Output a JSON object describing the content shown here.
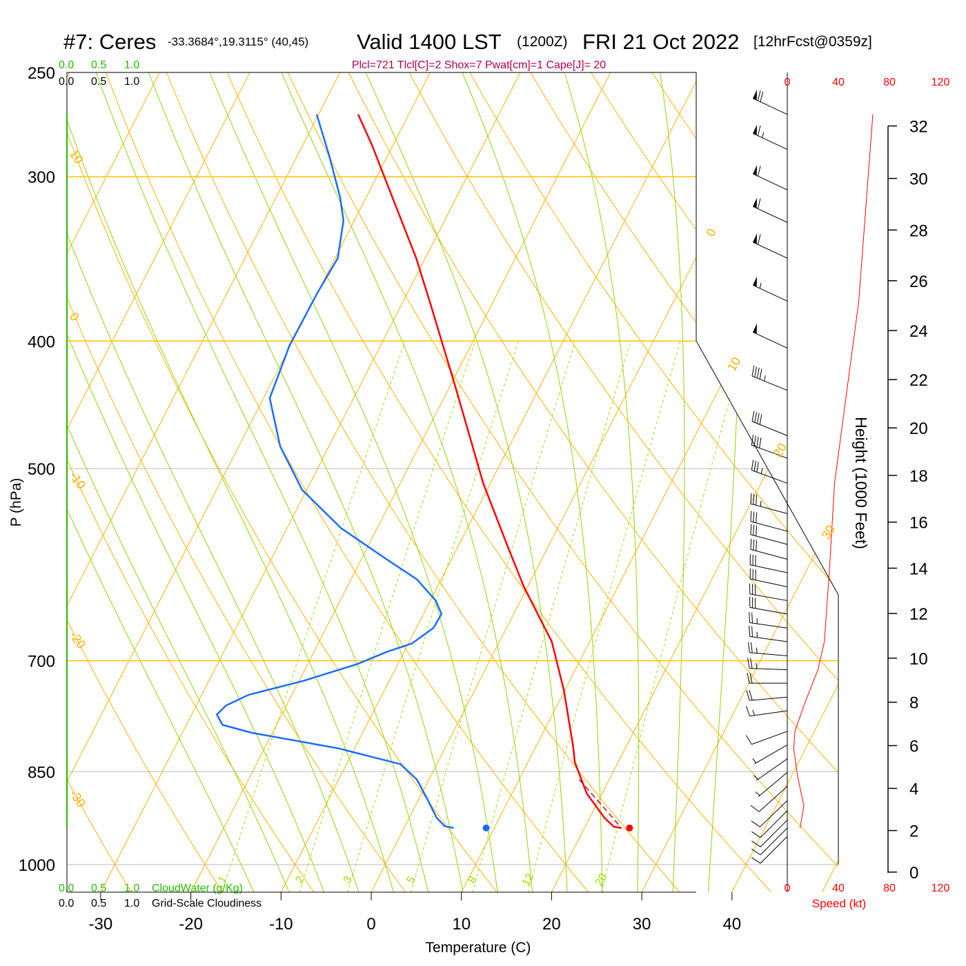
{
  "title": {
    "station": "#7: Ceres",
    "coords": "-33.3684°,19.3115° (40,45)",
    "valid": "Valid 1400 LST",
    "utc": "(1200Z)",
    "date": "FRI 21 Oct 2022",
    "forecast": "[12hrFcst@0359z]"
  },
  "indices": "Plcl=721 Tlcl[C]=2 Shox=7 Pwat[cm]=1 Cape[J]= 20",
  "cloud_scales": {
    "cloudwater_ticks": [
      "0.0",
      "0.5",
      "1.0"
    ],
    "cloudiness_ticks": [
      "0.0",
      "0.5",
      "1.0"
    ],
    "cloudwater_label": "CloudWater (g/Kg)",
    "cloudiness_label": "Grid-Scale Cloudiness"
  },
  "colors": {
    "temperature": "#ff0000",
    "dewpoint": "#1a6cff",
    "isotherm": "#ffb000",
    "moist_adiabat": "#8fd400",
    "mixing_ratio": "#99dd00",
    "parcel": "#b0004a",
    "cloud": "#22bb00"
  },
  "chart_data": {
    "type": "line",
    "title": "Skew-T sounding",
    "xlabel": "Temperature (C)",
    "ylabel": "P (hPa)",
    "right_label": "Height (1000 Feet)",
    "speed_label": "Speed (kt)",
    "pressure_ticks": [
      {
        "p": 250,
        "label": "250"
      },
      {
        "p": 300,
        "label": "300"
      },
      {
        "p": 400,
        "label": "400"
      },
      {
        "p": 500,
        "label": "500"
      },
      {
        "p": 700,
        "label": "700"
      },
      {
        "p": 850,
        "label": "850"
      },
      {
        "p": 1000,
        "label": "1000"
      }
    ],
    "temperature_ticks": [
      {
        "t": -30,
        "label": "-30"
      },
      {
        "t": -20,
        "label": "-20"
      },
      {
        "t": -10,
        "label": "-10"
      },
      {
        "t": 0,
        "label": "0"
      },
      {
        "t": 10,
        "label": "10"
      },
      {
        "t": 20,
        "label": "20"
      },
      {
        "t": 30,
        "label": "30"
      },
      {
        "t": 40,
        "label": "40"
      }
    ],
    "height_ticks_kft": [
      {
        "h": 0,
        "label": "0"
      },
      {
        "h": 2,
        "label": "2"
      },
      {
        "h": 4,
        "label": "4"
      },
      {
        "h": 6,
        "label": "6"
      },
      {
        "h": 8,
        "label": "8"
      },
      {
        "h": 10,
        "label": "10"
      },
      {
        "h": 12,
        "label": "12"
      },
      {
        "h": 14,
        "label": "14"
      },
      {
        "h": 16,
        "label": "16"
      },
      {
        "h": 18,
        "label": "18"
      },
      {
        "h": 20,
        "label": "20"
      },
      {
        "h": 22,
        "label": "22"
      },
      {
        "h": 24,
        "label": "24"
      },
      {
        "h": 26,
        "label": "26"
      },
      {
        "h": 28,
        "label": "28"
      },
      {
        "h": 30,
        "label": "30"
      },
      {
        "h": 32,
        "label": "32"
      }
    ],
    "speed_ticks": [
      {
        "s": 0,
        "label": "0"
      },
      {
        "s": 40,
        "label": "40"
      },
      {
        "s": 80,
        "label": "80"
      },
      {
        "s": 120,
        "label": "120"
      }
    ],
    "isotherm_labels": [
      {
        "t": 0,
        "p": 332,
        "label": "0"
      },
      {
        "t": 10,
        "p": 418,
        "label": "10"
      },
      {
        "t": 20,
        "p": 486,
        "label": "20"
      },
      {
        "t": 30,
        "p": 561,
        "label": "30"
      }
    ],
    "dry_adiabat_labels": [
      {
        "theta": 10,
        "label": "10"
      },
      {
        "theta": 0,
        "label": "0"
      },
      {
        "theta": -10,
        "label": "-10"
      },
      {
        "theta": -20,
        "label": "-20"
      },
      {
        "theta": -30,
        "label": "-30"
      }
    ],
    "mixing_ratio_labels": [
      {
        "w": 1,
        "label": "1"
      },
      {
        "w": 2,
        "label": "2"
      },
      {
        "w": 3,
        "label": "3"
      },
      {
        "w": 5,
        "label": "5"
      },
      {
        "w": 8,
        "label": "8"
      },
      {
        "w": 12,
        "label": "12"
      },
      {
        "w": 20,
        "label": "20"
      }
    ],
    "series": [
      {
        "name": "Temperature",
        "p": [
          269,
          284,
          303,
          346,
          375,
          433,
          513,
          572,
          615,
          677,
          737,
          811,
          836,
          883,
          921,
          936,
          938
        ],
        "t": [
          -45.6,
          -42.3,
          -38.6,
          -31.0,
          -26.8,
          -19.4,
          -10.8,
          -4.6,
          -0.4,
          5.8,
          9.9,
          14.0,
          15.2,
          18.3,
          21.6,
          23.2,
          24.1
        ]
      },
      {
        "name": "Dewpoint",
        "p": [
          269,
          289,
          311,
          324,
          346,
          368,
          403,
          442,
          481,
          519,
          555,
          586,
          607,
          630,
          645,
          661,
          679,
          689,
          704,
          725,
          743,
          757,
          769,
          783,
          794,
          816,
          839,
          862,
          894,
          921,
          935,
          938
        ],
        "t": [
          -50.2,
          -46.5,
          -42.9,
          -41.2,
          -39.7,
          -40.0,
          -40.1,
          -39.3,
          -35.4,
          -30.5,
          -24.0,
          -17.2,
          -12.7,
          -9.4,
          -8.0,
          -8.1,
          -9.6,
          -11.9,
          -14.5,
          -19.5,
          -24.8,
          -26.7,
          -27.2,
          -26.0,
          -22.3,
          -11.8,
          -4.0,
          -1.3,
          1.1,
          3.0,
          4.4,
          5.5
        ]
      },
      {
        "name": "Parcel",
        "p": [
          862,
          899,
          938
        ],
        "t": [
          16.7,
          20.4,
          24.1
        ]
      }
    ],
    "surface_points": [
      {
        "name": "Surface temperature",
        "p": 938,
        "t": 25.0
      },
      {
        "name": "Surface dewpoint",
        "p": 938,
        "t": 9.1
      }
    ],
    "wind_speed_profile": {
      "p": [
        269,
        373,
        513,
        598,
        677,
        711,
        757,
        792,
        816,
        856,
        902,
        938
      ],
      "speed_kt": [
        67,
        56,
        37,
        33,
        29,
        24,
        13,
        6,
        5,
        8,
        13,
        10
      ]
    },
    "wind_barbs": [
      {
        "p": 269,
        "dir": 295,
        "spd": 70
      },
      {
        "p": 286,
        "dir": 295,
        "spd": 65
      },
      {
        "p": 307,
        "dir": 295,
        "spd": 60
      },
      {
        "p": 325,
        "dir": 295,
        "spd": 60
      },
      {
        "p": 346,
        "dir": 295,
        "spd": 60
      },
      {
        "p": 373,
        "dir": 295,
        "spd": 55
      },
      {
        "p": 405,
        "dir": 295,
        "spd": 50
      },
      {
        "p": 436,
        "dir": 292,
        "spd": 45
      },
      {
        "p": 472,
        "dir": 292,
        "spd": 40
      },
      {
        "p": 491,
        "dir": 290,
        "spd": 40
      },
      {
        "p": 513,
        "dir": 290,
        "spd": 35
      },
      {
        "p": 541,
        "dir": 285,
        "spd": 35
      },
      {
        "p": 558,
        "dir": 285,
        "spd": 30
      },
      {
        "p": 571,
        "dir": 285,
        "spd": 30
      },
      {
        "p": 586,
        "dir": 285,
        "spd": 30
      },
      {
        "p": 600,
        "dir": 282,
        "spd": 30
      },
      {
        "p": 615,
        "dir": 282,
        "spd": 30
      },
      {
        "p": 630,
        "dir": 280,
        "spd": 30
      },
      {
        "p": 645,
        "dir": 280,
        "spd": 30
      },
      {
        "p": 661,
        "dir": 278,
        "spd": 25
      },
      {
        "p": 677,
        "dir": 278,
        "spd": 25
      },
      {
        "p": 694,
        "dir": 275,
        "spd": 25
      },
      {
        "p": 711,
        "dir": 272,
        "spd": 25
      },
      {
        "p": 728,
        "dir": 270,
        "spd": 20
      },
      {
        "p": 746,
        "dir": 265,
        "spd": 20
      },
      {
        "p": 764,
        "dir": 262,
        "spd": 15
      },
      {
        "p": 792,
        "dir": 250,
        "spd": 10
      },
      {
        "p": 811,
        "dir": 240,
        "spd": 5
      },
      {
        "p": 831,
        "dir": 235,
        "spd": 5
      },
      {
        "p": 851,
        "dir": 230,
        "spd": 5
      },
      {
        "p": 872,
        "dir": 228,
        "spd": 10
      },
      {
        "p": 894,
        "dir": 226,
        "spd": 10
      },
      {
        "p": 910,
        "dir": 225,
        "spd": 10
      },
      {
        "p": 925,
        "dir": 225,
        "spd": 10
      },
      {
        "p": 938,
        "dir": 225,
        "spd": 10
      },
      {
        "p": 952,
        "dir": 225,
        "spd": 10
      }
    ],
    "ylim_hpa": [
      1050,
      250
    ],
    "xlim_c_at_bottom": [
      -34,
      52
    ]
  }
}
